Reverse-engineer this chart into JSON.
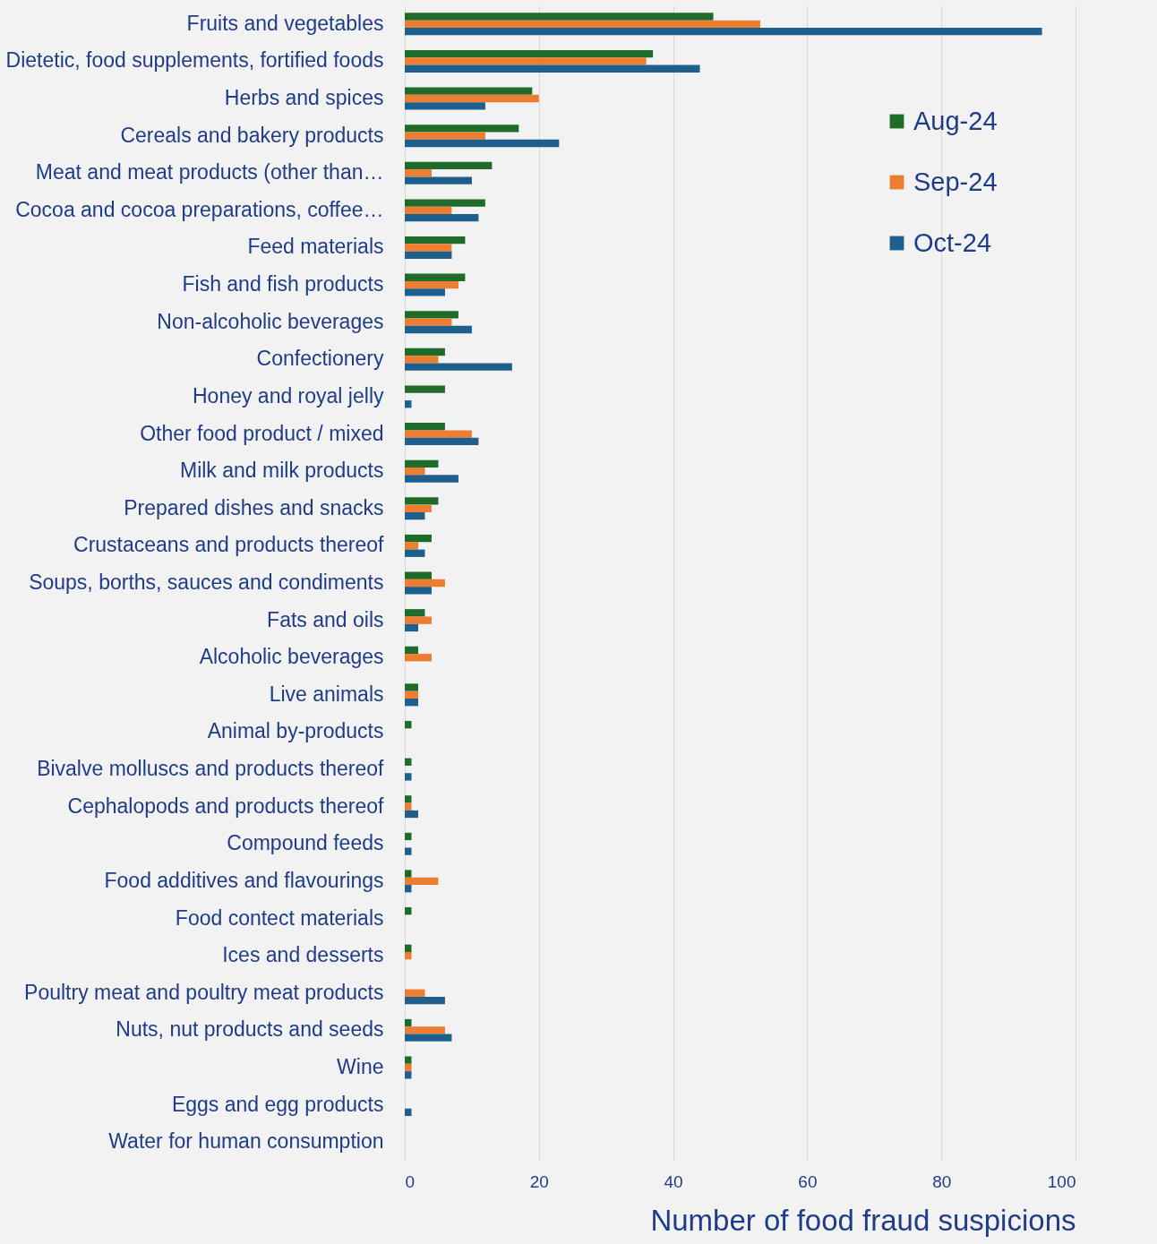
{
  "chart_data": {
    "type": "bar",
    "orientation": "horizontal",
    "xlabel": "Number of food fraud suspicions",
    "categories": [
      "Fruits and vegetables",
      "Dietetic, food supplements, fortified foods",
      "Herbs and spices",
      "Cereals and bakery products",
      "Meat and meat products (other than…",
      "Cocoa and cocoa preparations, coffee…",
      "Feed materials",
      "Fish and fish products",
      "Non-alcoholic beverages",
      "Confectionery",
      "Honey and royal jelly",
      "Other food product / mixed",
      "Milk and milk products",
      "Prepared dishes and snacks",
      "Crustaceans and products thereof",
      "Soups, borths, sauces and condiments",
      "Fats and oils",
      "Alcoholic beverages",
      "Live animals",
      "Animal by-products",
      "Bivalve molluscs and products thereof",
      "Cephalopods and products thereof",
      "Compound feeds",
      "Food additives and flavourings",
      "Food contect materials",
      "Ices and desserts",
      "Poultry meat and poultry meat products",
      "Nuts, nut products and seeds",
      "Wine",
      "Eggs and egg products",
      "Water for human consumption"
    ],
    "series": [
      {
        "name": "Aug-24",
        "color": "#1e6b2a",
        "values": [
          46,
          37,
          19,
          17,
          13,
          12,
          9,
          9,
          8,
          6,
          6,
          6,
          5,
          5,
          4,
          4,
          3,
          2,
          2,
          1,
          1,
          1,
          1,
          1,
          1,
          1,
          0,
          1,
          1,
          0,
          0
        ]
      },
      {
        "name": "Sep-24",
        "color": "#ed7d31",
        "values": [
          53,
          36,
          20,
          12,
          4,
          7,
          7,
          8,
          7,
          5,
          0,
          10,
          3,
          4,
          2,
          6,
          4,
          4,
          2,
          0,
          0,
          1,
          0,
          5,
          0,
          1,
          3,
          6,
          1,
          0,
          0
        ]
      },
      {
        "name": "Oct-24",
        "color": "#1f5f8b",
        "values": [
          95,
          44,
          12,
          23,
          10,
          11,
          7,
          6,
          10,
          16,
          1,
          11,
          8,
          3,
          3,
          4,
          2,
          0,
          2,
          0,
          1,
          2,
          1,
          1,
          0,
          0,
          6,
          7,
          1,
          1,
          0
        ]
      }
    ],
    "xlim": [
      0,
      100
    ],
    "xticks": [
      0,
      20,
      40,
      60,
      80,
      100
    ],
    "grid": "x",
    "legend": "top right"
  }
}
